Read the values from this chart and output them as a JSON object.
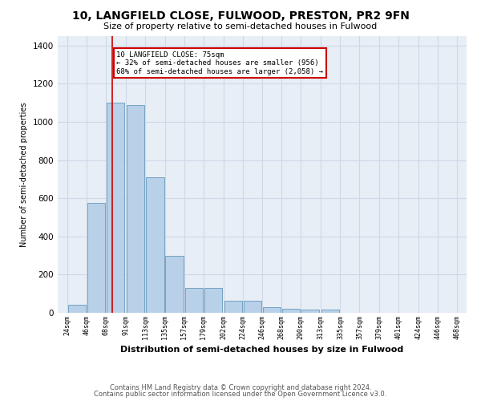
{
  "title": "10, LANGFIELD CLOSE, FULWOOD, PRESTON, PR2 9FN",
  "subtitle": "Size of property relative to semi-detached houses in Fulwood",
  "xlabel": "Distribution of semi-detached houses by size in Fulwood",
  "ylabel": "Number of semi-detached properties",
  "footer1": "Contains HM Land Registry data © Crown copyright and database right 2024.",
  "footer2": "Contains public sector information licensed under the Open Government Licence v3.0.",
  "annotation_title": "10 LANGFIELD CLOSE: 75sqm",
  "annotation_line1": "← 32% of semi-detached houses are smaller (956)",
  "annotation_line2": "68% of semi-detached houses are larger (2,058) →",
  "property_size": 75,
  "bins": [
    24,
    46,
    68,
    91,
    113,
    135,
    157,
    179,
    202,
    224,
    246,
    268,
    290,
    313,
    335,
    357,
    379,
    401,
    424,
    446,
    468
  ],
  "values": [
    40,
    575,
    1100,
    1090,
    710,
    300,
    130,
    130,
    65,
    65,
    30,
    20,
    15,
    15,
    0,
    0,
    0,
    0,
    0,
    0
  ],
  "bar_color": "#b8d0e8",
  "bar_edge_color": "#6699bb",
  "highlight_line_color": "#cc0000",
  "annotation_box_color": "#cc0000",
  "grid_color": "#d0d8e8",
  "background_color": "#e8eef6",
  "ylim": [
    0,
    1450
  ],
  "yticks": [
    0,
    200,
    400,
    600,
    800,
    1000,
    1200,
    1400
  ],
  "title_fontsize": 10,
  "subtitle_fontsize": 8,
  "ylabel_fontsize": 7,
  "xlabel_fontsize": 8
}
